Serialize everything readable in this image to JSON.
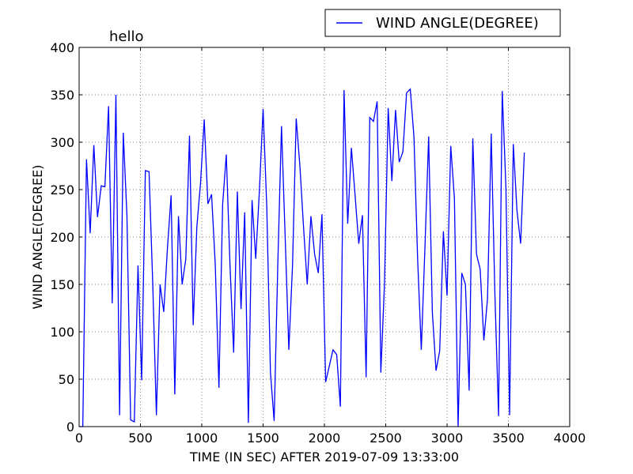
{
  "chart_data": {
    "type": "line",
    "title": "hello",
    "xlabel": "TIME (IN SEC) AFTER 2019-07-09 13:33:00",
    "ylabel": "WIND ANGLE(DEGREE)",
    "xlim": [
      0,
      4000
    ],
    "ylim": [
      0,
      400
    ],
    "xticks": [
      0,
      500,
      1000,
      1500,
      2000,
      2500,
      3000,
      3500,
      4000
    ],
    "yticks": [
      0,
      50,
      100,
      150,
      200,
      250,
      300,
      350,
      400
    ],
    "xtick_labels": [
      "0",
      "500",
      "1000",
      "1500",
      "2000",
      "2500",
      "3000",
      "3500",
      "4000"
    ],
    "ytick_labels": [
      "0",
      "50",
      "100",
      "150",
      "200",
      "250",
      "300",
      "350",
      "400"
    ],
    "grid": true,
    "legend_position": "top-right",
    "series": [
      {
        "name": "WIND ANGLE(DEGREE)",
        "color": "#0000ff",
        "x": [
          0,
          30,
          60,
          90,
          120,
          150,
          180,
          210,
          240,
          270,
          300,
          330,
          360,
          390,
          420,
          450,
          480,
          510,
          540,
          570,
          600,
          630,
          660,
          690,
          720,
          750,
          780,
          810,
          840,
          870,
          900,
          930,
          960,
          990,
          1020,
          1050,
          1080,
          1110,
          1140,
          1170,
          1200,
          1230,
          1260,
          1290,
          1320,
          1350,
          1380,
          1410,
          1440,
          1470,
          1500,
          1530,
          1560,
          1590,
          1620,
          1650,
          1680,
          1710,
          1740,
          1770,
          1800,
          1830,
          1860,
          1890,
          1920,
          1950,
          1980,
          2010,
          2040,
          2070,
          2100,
          2130,
          2160,
          2190,
          2220,
          2250,
          2280,
          2310,
          2340,
          2370,
          2400,
          2430,
          2460,
          2490,
          2520,
          2550,
          2580,
          2610,
          2640,
          2670,
          2700,
          2730,
          2760,
          2790,
          2820,
          2850,
          2880,
          2910,
          2940,
          2970,
          3000,
          3030,
          3060,
          3090,
          3120,
          3150,
          3180,
          3210,
          3240,
          3270,
          3300,
          3330,
          3360,
          3390,
          3420,
          3450,
          3480,
          3510,
          3540,
          3570,
          3600,
          3630
        ],
        "y": [
          0,
          0,
          282,
          204,
          297,
          221,
          254,
          253,
          338,
          130,
          350,
          12,
          310,
          222,
          7,
          5,
          170,
          49,
          270,
          269,
          152,
          12,
          150,
          121,
          188,
          244,
          34,
          222,
          150,
          177,
          307,
          107,
          211,
          257,
          324,
          235,
          245,
          171,
          41,
          234,
          287,
          171,
          78,
          248,
          124,
          226,
          4,
          239,
          177,
          249,
          335,
          232,
          57,
          6,
          171,
          317,
          200,
          81,
          170,
          325,
          275,
          210,
          150,
          222,
          182,
          162,
          224,
          47,
          64,
          81,
          76,
          21,
          355,
          214,
          294,
          244,
          193,
          223,
          52,
          326,
          322,
          343,
          57,
          151,
          336,
          259,
          334,
          279,
          290,
          352,
          356,
          306,
          177,
          81,
          190,
          306,
          121,
          59,
          80,
          206,
          138,
          296,
          241,
          0,
          162,
          150,
          38,
          304,
          182,
          166,
          91,
          135,
          309,
          140,
          11,
          354,
          252,
          12,
          298,
          228,
          193,
          289
        ]
      }
    ]
  }
}
